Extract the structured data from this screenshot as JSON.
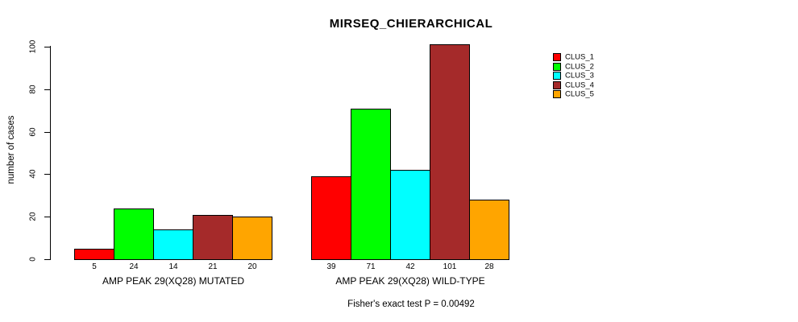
{
  "chart_data": {
    "type": "bar",
    "title": "MIRSEQ_CHIERARCHICAL",
    "subtitle": "Fisher's exact test P = 0.00492",
    "xlabel": "",
    "ylabel": "number of cases",
    "ylim": [
      0,
      100
    ],
    "yticks": [
      0,
      20,
      40,
      60,
      80,
      100
    ],
    "grid": false,
    "legend_position": "top-right",
    "bar_border_color": "#000000",
    "value_labels_shown": true,
    "categories": [
      "AMP PEAK 29(XQ28) MUTATED",
      "AMP PEAK 29(XQ28) WILD-TYPE"
    ],
    "series": [
      {
        "name": "CLUS_1",
        "color": "#FF0000",
        "values": [
          5,
          39
        ]
      },
      {
        "name": "CLUS_2",
        "color": "#00FF00",
        "values": [
          24,
          71
        ]
      },
      {
        "name": "CLUS_3",
        "color": "#00FFFF",
        "values": [
          14,
          42
        ]
      },
      {
        "name": "CLUS_4",
        "color": "#A52A2A",
        "values": [
          21,
          101
        ]
      },
      {
        "name": "CLUS_5",
        "color": "#FFA500",
        "values": [
          20,
          28
        ]
      }
    ]
  }
}
